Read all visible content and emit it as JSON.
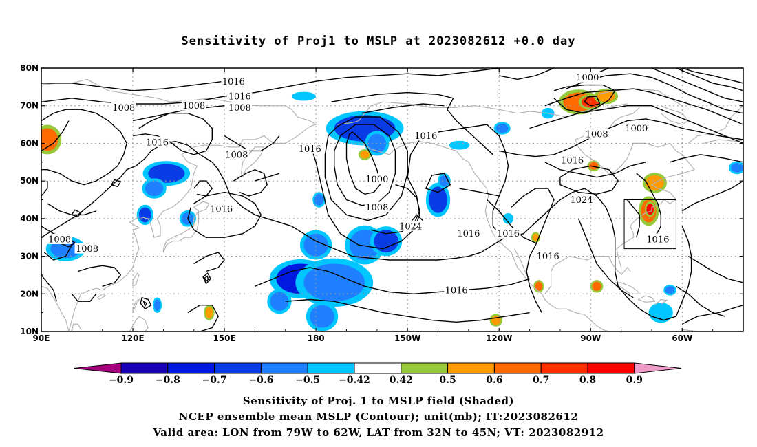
{
  "title": "Sensitivity of Proj1 to MSLP at 2023082612 +0.0 day",
  "lat_labels": [
    "80N",
    "70N",
    "60N",
    "50N",
    "40N",
    "30N",
    "20N",
    "10N"
  ],
  "lon_labels": [
    "90E",
    "120E",
    "150E",
    "180",
    "150W",
    "120W",
    "90W",
    "60W"
  ],
  "contour_labels": [
    {
      "text": "1016",
      "lon": 153,
      "lat": 76.4
    },
    {
      "text": "1016",
      "lon": 155,
      "lat": 72.5
    },
    {
      "text": "1008",
      "lon": 155,
      "lat": 69.5
    },
    {
      "text": "1000",
      "lon": 269,
      "lat": 77.5
    },
    {
      "text": "1008",
      "lon": 117,
      "lat": 69.5
    },
    {
      "text": "1008",
      "lon": 140,
      "lat": 70.0
    },
    {
      "text": "1016",
      "lon": 128,
      "lat": 60.3
    },
    {
      "text": "1008",
      "lon": 154,
      "lat": 57.0
    },
    {
      "text": "1016",
      "lon": 178,
      "lat": 58.5
    },
    {
      "text": "1016",
      "lon": 216,
      "lat": 62.0
    },
    {
      "text": "1008",
      "lon": 272,
      "lat": 62.5
    },
    {
      "text": "1000",
      "lon": 285,
      "lat": 64.0
    },
    {
      "text": "1016",
      "lon": 264,
      "lat": 55.5
    },
    {
      "text": "1000",
      "lon": 200,
      "lat": 50.5
    },
    {
      "text": "1008",
      "lon": 200,
      "lat": 43.0
    },
    {
      "text": "1024",
      "lon": 211,
      "lat": 38.0
    },
    {
      "text": "1016",
      "lon": 149,
      "lat": 42.5
    },
    {
      "text": "1024",
      "lon": 267,
      "lat": 45.0
    },
    {
      "text": "1016",
      "lon": 230,
      "lat": 36.0
    },
    {
      "text": "1016",
      "lon": 243,
      "lat": 36.0
    },
    {
      "text": "1016",
      "lon": 256,
      "lat": 30.0
    },
    {
      "text": "1016",
      "lon": 226,
      "lat": 21.0
    },
    {
      "text": "1016",
      "lon": 292,
      "lat": 34.5
    },
    {
      "text": "1008",
      "lon": 96,
      "lat": 34.5
    },
    {
      "text": "1008",
      "lon": 105,
      "lat": 32.0
    }
  ],
  "colorbar": {
    "colors": [
      "#a7007d",
      "#1a00b4",
      "#0019e0",
      "#0a3ce6",
      "#1f80ff",
      "#00c6ff",
      "#ffffff",
      "#97c93a",
      "#ff9b00",
      "#ff6a00",
      "#ff3000",
      "#ff0000",
      "#f09cc8"
    ],
    "labels": [
      "−0.9",
      "−0.8",
      "−0.7",
      "−0.6",
      "−0.5",
      "−0.42",
      "0.42",
      "0.5",
      "0.6",
      "0.7",
      "0.8",
      "0.9"
    ]
  },
  "captions": [
    "Sensitivity of Proj. 1 to MSLP field (Shaded)",
    "NCEP ensemble mean MSLP (Contour); unit(mb); IT:2023082612",
    "Valid area: LON from 79W to 62W, LAT from 32N to 45N; VT: 2023082912"
  ],
  "map_extent": {
    "lon_min": 90,
    "lon_max": 320,
    "lat_min": 10,
    "lat_max": 80
  },
  "valid_area": {
    "lon_min": 281,
    "lon_max": 298,
    "lat_min": 32,
    "lat_max": 45
  },
  "shading_blobs": [
    {
      "lon": 92,
      "lat": 61,
      "rx": 3.5,
      "ry": 3.0,
      "level": 0.6
    },
    {
      "lon": 98,
      "lat": 32,
      "rx": 5,
      "ry": 2.5,
      "level": -0.55
    },
    {
      "lon": 131,
      "lat": 52,
      "rx": 6,
      "ry": 2.5,
      "level": -0.6
    },
    {
      "lon": 127,
      "lat": 48,
      "rx": 3,
      "ry": 2,
      "level": -0.5
    },
    {
      "lon": 124,
      "lat": 41,
      "rx": 2,
      "ry": 2,
      "level": -0.6
    },
    {
      "lon": 138,
      "lat": 40,
      "rx": 2,
      "ry": 1.6,
      "level": -0.55
    },
    {
      "lon": 180,
      "lat": 33,
      "rx": 4,
      "ry": 3,
      "level": -0.5
    },
    {
      "lon": 175,
      "lat": 24,
      "rx": 8,
      "ry": 4,
      "level": -0.75
    },
    {
      "lon": 186,
      "lat": 23,
      "rx": 10,
      "ry": 5,
      "level": -0.5
    },
    {
      "lon": 168,
      "lat": 18,
      "rx": 3,
      "ry": 2.5,
      "level": -0.55
    },
    {
      "lon": 182,
      "lat": 14,
      "rx": 4,
      "ry": 3,
      "level": -0.5
    },
    {
      "lon": 196,
      "lat": 33,
      "rx": 5,
      "ry": 4,
      "level": -0.5
    },
    {
      "lon": 203,
      "lat": 34,
      "rx": 4,
      "ry": 3,
      "level": -0.6
    },
    {
      "lon": 196,
      "lat": 64,
      "rx": 10,
      "ry": 3.5,
      "level": -0.65
    },
    {
      "lon": 200,
      "lat": 60,
      "rx": 3,
      "ry": 2.5,
      "level": -0.55
    },
    {
      "lon": 196,
      "lat": 57,
      "rx": 1.5,
      "ry": 1,
      "level": 0.5
    },
    {
      "lon": 220,
      "lat": 45,
      "rx": 3,
      "ry": 3.5,
      "level": -0.65
    },
    {
      "lon": 222,
      "lat": 50,
      "rx": 1.5,
      "ry": 1.5,
      "level": -0.5
    },
    {
      "lon": 181,
      "lat": 45,
      "rx": 1.5,
      "ry": 1.5,
      "level": -0.5
    },
    {
      "lon": 176,
      "lat": 72.5,
      "rx": 3,
      "ry": 0.8,
      "level": -0.45
    },
    {
      "lon": 227,
      "lat": 59.5,
      "rx": 2.5,
      "ry": 0.8,
      "level": -0.45
    },
    {
      "lon": 241,
      "lat": 64,
      "rx": 2,
      "ry": 1.2,
      "level": -0.5
    },
    {
      "lon": 266,
      "lat": 71,
      "rx": 5,
      "ry": 2.5,
      "level": 0.6
    },
    {
      "lon": 270,
      "lat": 71,
      "rx": 3,
      "ry": 1.5,
      "level": 0.7
    },
    {
      "lon": 275,
      "lat": 72.5,
      "rx": 3,
      "ry": 1.5,
      "level": 0.5
    },
    {
      "lon": 256,
      "lat": 68,
      "rx": 1.5,
      "ry": 1,
      "level": -0.45
    },
    {
      "lon": 291,
      "lat": 49.5,
      "rx": 3,
      "ry": 2,
      "level": 0.5
    },
    {
      "lon": 289,
      "lat": 42,
      "rx": 2.5,
      "ry": 3,
      "level": 0.6
    },
    {
      "lon": 289.5,
      "lat": 42.5,
      "rx": 1.2,
      "ry": 1.5,
      "level": 0.8
    },
    {
      "lon": 271,
      "lat": 54,
      "rx": 1.5,
      "ry": 1,
      "level": 0.6
    },
    {
      "lon": 252,
      "lat": 35,
      "rx": 1,
      "ry": 1,
      "level": 0.5
    },
    {
      "lon": 253,
      "lat": 22,
      "rx": 1.2,
      "ry": 1.2,
      "level": 0.6
    },
    {
      "lon": 272,
      "lat": 22,
      "rx": 1.5,
      "ry": 1.2,
      "level": 0.6
    },
    {
      "lon": 239,
      "lat": 13,
      "rx": 1.5,
      "ry": 1.2,
      "level": 0.5
    },
    {
      "lon": 293,
      "lat": 15,
      "rx": 3,
      "ry": 2,
      "level": -0.45
    },
    {
      "lon": 296,
      "lat": 21,
      "rx": 1.5,
      "ry": 1,
      "level": -0.5
    },
    {
      "lon": 318,
      "lat": 53.5,
      "rx": 2,
      "ry": 1.2,
      "level": -0.55
    },
    {
      "lon": 145,
      "lat": 15,
      "rx": 1.2,
      "ry": 1.5,
      "level": 0.55
    },
    {
      "lon": 128,
      "lat": 17,
      "rx": 1,
      "ry": 1.5,
      "level": -0.5
    },
    {
      "lon": 243,
      "lat": 40,
      "rx": 1.2,
      "ry": 1,
      "level": -0.45
    }
  ]
}
